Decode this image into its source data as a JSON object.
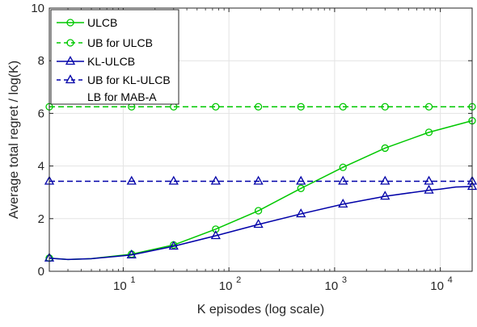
{
  "chart_data": {
    "type": "line",
    "xlabel": "K episodes (log scale)",
    "ylabel": "Average total regret / log(K)",
    "x_scale": "log",
    "xlim": [
      2,
      20000
    ],
    "ylim": [
      0,
      10
    ],
    "grid": true,
    "legend_position": "top-left",
    "x_ticks": [
      {
        "value": 10,
        "base": "10",
        "exp": "1"
      },
      {
        "value": 100,
        "base": "10",
        "exp": "2"
      },
      {
        "value": 1000,
        "base": "10",
        "exp": "3"
      },
      {
        "value": 10000,
        "base": "10",
        "exp": "4"
      }
    ],
    "y_ticks": [
      0,
      2,
      4,
      6,
      8,
      10
    ],
    "marker_x": [
      2,
      12,
      30,
      75,
      190,
      480,
      1200,
      3000,
      7800,
      20000
    ],
    "series": [
      {
        "name": "ULCB",
        "color": "#00c800",
        "dash": "solid",
        "marker": "circle",
        "x": [
          2,
          3,
          5,
          12,
          30,
          75,
          190,
          480,
          1200,
          3000,
          7800,
          20000
        ],
        "y": [
          0.5,
          0.45,
          0.48,
          0.65,
          1.0,
          1.6,
          2.3,
          3.15,
          3.95,
          4.68,
          5.28,
          5.72
        ]
      },
      {
        "name": "UB for ULCB",
        "color": "#00c800",
        "dash": "dashed",
        "marker": "circle",
        "x": [
          2,
          20000
        ],
        "y": [
          6.25,
          6.25
        ]
      },
      {
        "name": "KL-ULCB",
        "color": "#0000a8",
        "dash": "solid",
        "marker": "triangle",
        "x": [
          2,
          3,
          5,
          12,
          30,
          75,
          190,
          480,
          1200,
          3000,
          7800,
          10000,
          14000,
          20000
        ],
        "y": [
          0.5,
          0.45,
          0.48,
          0.62,
          0.95,
          1.35,
          1.78,
          2.18,
          2.55,
          2.85,
          3.08,
          3.12,
          3.2,
          3.22
        ]
      },
      {
        "name": "UB for KL-ULCB",
        "color": "#0000a8",
        "dash": "dashed",
        "marker": "triangle",
        "x": [
          2,
          20000
        ],
        "y": [
          3.42,
          3.42
        ]
      },
      {
        "name": "LB for MAB-A",
        "color": "#0000a8",
        "dash": "none",
        "marker": "none",
        "x": [],
        "y": []
      }
    ]
  }
}
